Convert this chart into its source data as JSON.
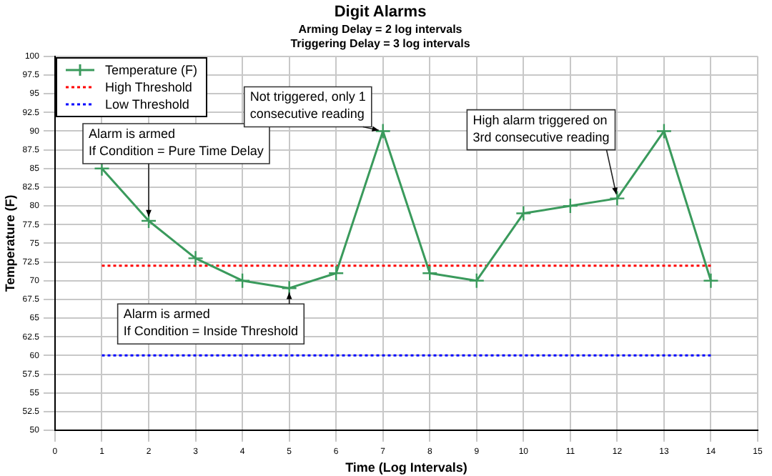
{
  "chart_data": {
    "type": "line",
    "title": "Digit Alarms",
    "subtitle": "Arming Delay = 2 log intervals\nTriggering Delay = 3 log intervals",
    "xlabel": "Time (Log Intervals)",
    "ylabel": "Temperature (F)",
    "x": [
      1,
      2,
      3,
      4,
      5,
      6,
      7,
      8,
      9,
      10,
      11,
      12,
      13,
      14
    ],
    "series": [
      {
        "name": "Temperature (F)",
        "color": "#3a9a5c",
        "marker": "cross",
        "line_style": "solid",
        "values": [
          85,
          78,
          73,
          70,
          69,
          71,
          90,
          71,
          70,
          79,
          80,
          81,
          90,
          70
        ]
      },
      {
        "name": "High Threshold",
        "color": "#ff0000",
        "marker": "none",
        "line_style": "dotted",
        "values": [
          72,
          72,
          72,
          72,
          72,
          72,
          72,
          72,
          72,
          72,
          72,
          72,
          72,
          72
        ]
      },
      {
        "name": "Low Threshold",
        "color": "#0000ff",
        "marker": "none",
        "line_style": "dotted",
        "values": [
          60,
          60,
          60,
          60,
          60,
          60,
          60,
          60,
          60,
          60,
          60,
          60,
          60,
          60
        ]
      }
    ],
    "annotations": [
      {
        "text": "Alarm is armed\nIf Condition = Pure Time Delay",
        "x": 2,
        "y": 78
      },
      {
        "text": "Not triggered, only 1\nconsecutive reading",
        "x": 7,
        "y": 90
      },
      {
        "text": "High alarm triggered on\n3rd consecutive reading",
        "x": 12,
        "y": 81
      },
      {
        "text": "Alarm is armed\nIf Condition = Inside Threshold",
        "x": 5,
        "y": 69
      }
    ],
    "xlim": [
      0,
      15
    ],
    "xticks": [
      0,
      1,
      2,
      3,
      4,
      5,
      6,
      7,
      8,
      9,
      10,
      11,
      12,
      13,
      14,
      15
    ],
    "ylim": [
      50,
      100
    ],
    "yticks": [
      50,
      52.5,
      55,
      57.5,
      60,
      62.5,
      65,
      67.5,
      70,
      72.5,
      75,
      77.5,
      80,
      82.5,
      85,
      87.5,
      90,
      92.5,
      95,
      97.5,
      100
    ],
    "grid": true,
    "legend": "top left"
  }
}
